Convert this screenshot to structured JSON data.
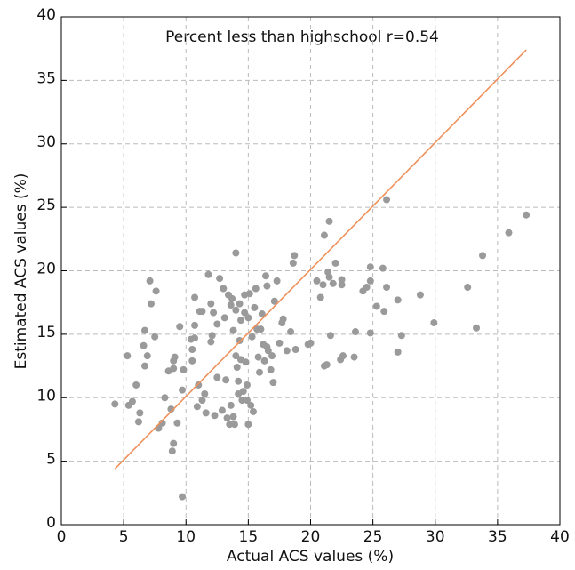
{
  "chart_data": {
    "type": "scatter",
    "annotation": "Percent less than highschool  r=0.54",
    "x_label": "Actual ACS values (%)",
    "y_label": "Estimated ACS values (%)",
    "xlim": [
      0,
      40
    ],
    "ylim": [
      0,
      40
    ],
    "xticks": [
      0,
      5,
      10,
      15,
      20,
      25,
      30,
      35,
      40
    ],
    "yticks": [
      0,
      5,
      10,
      15,
      20,
      25,
      30,
      35,
      40
    ],
    "grid": true,
    "color": "#9a9a9a",
    "x": [
      4.3,
      5.3,
      5.4,
      5.7,
      6.0,
      6.2,
      6.3,
      6.6,
      6.7,
      6.7,
      6.9,
      7.1,
      7.2,
      7.5,
      7.6,
      7.8,
      8.1,
      8.3,
      8.6,
      8.8,
      8.9,
      9.0,
      9.0,
      9.0,
      9.1,
      9.3,
      9.5,
      9.7,
      9.7,
      9.8,
      10.4,
      10.5,
      10.5,
      10.7,
      10.7,
      10.7,
      10.9,
      11.0,
      11.1,
      11.3,
      11.3,
      11.5,
      11.6,
      11.8,
      12.0,
      12.0,
      12.1,
      12.2,
      12.3,
      12.5,
      12.5,
      12.7,
      12.9,
      13.0,
      13.1,
      13.2,
      13.3,
      13.4,
      13.5,
      13.6,
      13.6,
      13.7,
      13.8,
      13.8,
      13.9,
      14.0,
      14.0,
      14.0,
      14.1,
      14.2,
      14.2,
      14.3,
      14.3,
      14.4,
      14.4,
      14.5,
      14.6,
      14.7,
      14.7,
      14.8,
      14.9,
      14.9,
      15.0,
      15.0,
      15.1,
      15.2,
      15.3,
      15.4,
      15.5,
      15.6,
      15.7,
      15.8,
      15.9,
      16.0,
      16.1,
      16.2,
      16.3,
      16.4,
      16.5,
      16.5,
      16.6,
      16.8,
      16.9,
      17.0,
      17.1,
      17.3,
      17.5,
      17.7,
      17.8,
      18.1,
      18.4,
      18.6,
      18.7,
      18.8,
      19.8,
      20.0,
      20.5,
      20.8,
      21.0,
      21.1,
      21.1,
      21.3,
      21.4,
      21.5,
      21.5,
      21.6,
      21.8,
      22.0,
      22.4,
      22.5,
      22.5,
      22.6,
      23.5,
      23.6,
      24.2,
      24.5,
      24.8,
      24.8,
      24.8,
      25.3,
      25.8,
      25.9,
      26.1,
      26.1,
      27.0,
      27.0,
      27.3,
      28.8,
      29.9,
      32.6,
      33.3,
      33.8,
      35.9,
      37.3
    ],
    "y": [
      9.5,
      13.3,
      9.4,
      9.7,
      11.0,
      8.1,
      8.8,
      14.1,
      15.3,
      12.5,
      13.3,
      19.2,
      17.4,
      14.8,
      18.4,
      7.6,
      8.0,
      10.0,
      12.1,
      9.1,
      5.8,
      6.4,
      12.9,
      12.3,
      13.2,
      8.0,
      15.6,
      10.6,
      2.2,
      12.2,
      14.6,
      13.8,
      12.9,
      17.9,
      15.7,
      14.7,
      9.3,
      11.0,
      16.8,
      9.8,
      16.8,
      10.3,
      8.8,
      19.7,
      17.4,
      14.4,
      14.9,
      16.7,
      8.6,
      15.8,
      11.6,
      19.4,
      9.0,
      18.6,
      16.3,
      11.4,
      8.4,
      18.1,
      7.9,
      17.3,
      9.4,
      17.8,
      8.5,
      15.3,
      7.9,
      21.4,
      16.9,
      13.3,
      12.4,
      10.3,
      11.3,
      17.4,
      14.5,
      16.1,
      13.0,
      9.8,
      10.5,
      18.1,
      16.7,
      12.8,
      11.0,
      9.8,
      16.3,
      7.9,
      18.2,
      9.4,
      14.8,
      8.9,
      17.1,
      18.6,
      15.4,
      13.2,
      12.0,
      15.4,
      16.6,
      14.2,
      12.9,
      19.6,
      14.0,
      18.8,
      13.7,
      12.2,
      13.3,
      11.2,
      17.6,
      19.2,
      14.3,
      15.9,
      16.2,
      13.7,
      15.2,
      20.6,
      21.2,
      13.8,
      14.2,
      14.3,
      19.2,
      17.9,
      18.9,
      12.5,
      22.8,
      12.6,
      19.9,
      23.9,
      19.5,
      14.9,
      19.0,
      20.6,
      13.0,
      19.3,
      18.9,
      13.3,
      13.2,
      15.2,
      18.4,
      18.7,
      19.2,
      20.3,
      15.1,
      17.2,
      20.2,
      16.8,
      25.6,
      18.7,
      17.7,
      13.6,
      14.9,
      18.1,
      15.9,
      18.7,
      15.5,
      21.2,
      23.0,
      24.4
    ],
    "fit_line": {
      "color": "#f0905a",
      "x": [
        4.3,
        37.3
      ],
      "y": [
        4.4,
        37.4
      ]
    }
  }
}
